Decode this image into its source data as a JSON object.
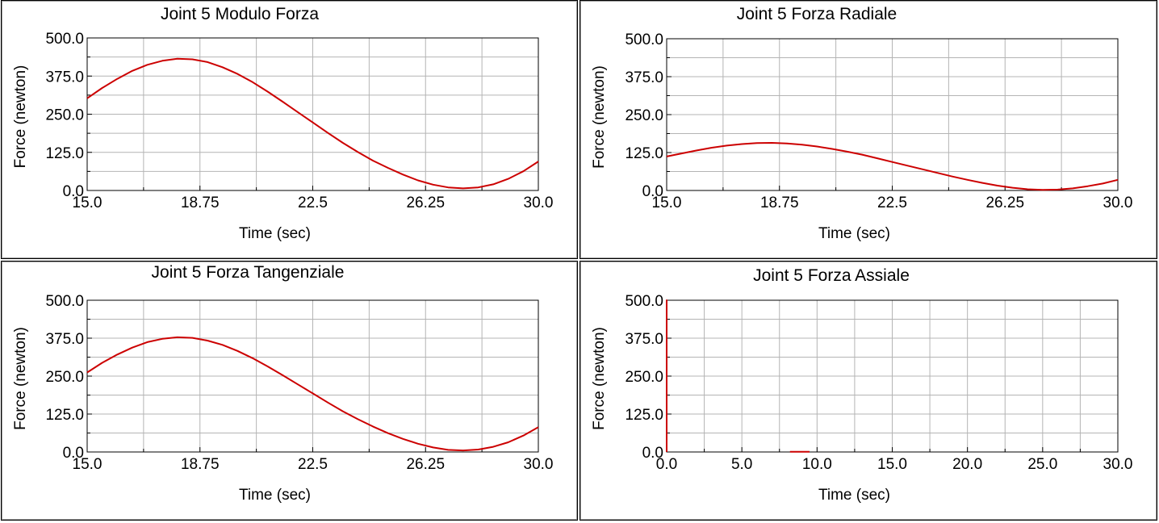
{
  "chart_data": [
    {
      "type": "line",
      "title": "Joint 5 Modulo Forza",
      "xlabel": "Time (sec)",
      "ylabel": "Force (newton)",
      "xlim": [
        15.0,
        30.0
      ],
      "ylim": [
        0.0,
        500.0
      ],
      "xticks": [
        "15.0",
        "18.75",
        "22.5",
        "26.25",
        "30.0"
      ],
      "yticks": [
        "0.0",
        "125.0",
        "250.0",
        "375.0",
        "500.0"
      ],
      "grid": true,
      "series": [
        {
          "color": "#cc0000",
          "x": [
            15.0,
            15.5,
            16.0,
            16.5,
            17.0,
            17.5,
            18.0,
            18.5,
            19.0,
            19.5,
            20.0,
            20.5,
            21.0,
            21.5,
            22.0,
            22.5,
            23.0,
            23.5,
            24.0,
            24.5,
            25.0,
            25.5,
            26.0,
            26.5,
            27.0,
            27.5,
            28.0,
            28.5,
            29.0,
            29.5,
            30.0
          ],
          "y": [
            302,
            336,
            366,
            392,
            412,
            425,
            432,
            430,
            421,
            404,
            382,
            355,
            324,
            291,
            257,
            223,
            189,
            156,
            126,
            98,
            74,
            52,
            33,
            19,
            10,
            7,
            10,
            20,
            38,
            63,
            95
          ]
        }
      ]
    },
    {
      "type": "line",
      "title": "Joint 5 Forza Radiale",
      "xlabel": "Time (sec)",
      "ylabel": "Force (newton)",
      "xlim": [
        15.0,
        30.0
      ],
      "ylim": [
        0.0,
        500.0
      ],
      "xticks": [
        "15.0",
        "18.75",
        "22.5",
        "26.25",
        "30.0"
      ],
      "yticks": [
        "0.0",
        "125.0",
        "250.0",
        "375.0",
        "500.0"
      ],
      "grid": true,
      "series": [
        {
          "color": "#cc0000",
          "x": [
            15.0,
            15.5,
            16.0,
            16.5,
            17.0,
            17.5,
            18.0,
            18.5,
            19.0,
            19.5,
            20.0,
            20.5,
            21.0,
            21.5,
            22.0,
            22.5,
            23.0,
            23.5,
            24.0,
            24.5,
            25.0,
            25.5,
            26.0,
            26.5,
            27.0,
            27.5,
            28.0,
            28.5,
            29.0,
            29.5,
            30.0
          ],
          "y": [
            112,
            122,
            132,
            141,
            148,
            153,
            156,
            157,
            155,
            151,
            145,
            137,
            128,
            118,
            106,
            94,
            82,
            70,
            58,
            46,
            35,
            25,
            16,
            9,
            4,
            2,
            3,
            7,
            14,
            23,
            35
          ]
        }
      ]
    },
    {
      "type": "line",
      "title": "Joint 5 Forza Tangenziale",
      "xlabel": "Time (sec)",
      "ylabel": "Force (newton)",
      "xlim": [
        15.0,
        30.0
      ],
      "ylim": [
        0.0,
        500.0
      ],
      "xticks": [
        "15.0",
        "18.75",
        "22.5",
        "26.25",
        "30.0"
      ],
      "yticks": [
        "0.0",
        "125.0",
        "250.0",
        "375.0",
        "500.0"
      ],
      "grid": true,
      "series": [
        {
          "color": "#cc0000",
          "x": [
            15.0,
            15.5,
            16.0,
            16.5,
            17.0,
            17.5,
            18.0,
            18.5,
            19.0,
            19.5,
            20.0,
            20.5,
            21.0,
            21.5,
            22.0,
            22.5,
            23.0,
            23.5,
            24.0,
            24.5,
            25.0,
            25.5,
            26.0,
            26.5,
            27.0,
            27.5,
            28.0,
            28.5,
            29.0,
            29.5,
            30.0
          ],
          "y": [
            262,
            294,
            321,
            344,
            362,
            373,
            378,
            376,
            367,
            353,
            333,
            309,
            282,
            253,
            223,
            193,
            163,
            134,
            108,
            84,
            62,
            43,
            27,
            15,
            7,
            5,
            8,
            17,
            32,
            54,
            82
          ]
        }
      ]
    },
    {
      "type": "line",
      "title": "Joint 5 Forza Assiale",
      "xlabel": "Time (sec)",
      "ylabel": "Force (newton)",
      "xlim": [
        0.0,
        30.0
      ],
      "ylim": [
        0.0,
        500.0
      ],
      "xticks": [
        "0.0",
        "5.0",
        "10.0",
        "15.0",
        "20.0",
        "25.0",
        "30.0"
      ],
      "yticks": [
        "0.0",
        "125.0",
        "250.0",
        "375.0",
        "500.0"
      ],
      "grid": true,
      "series": [
        {
          "color": "#cc0000",
          "x": [
            0.0,
            0.0,
            0.0
          ],
          "y": [
            0,
            500,
            0
          ]
        },
        {
          "color": "#cc0000",
          "x": [
            8.2,
            9.5
          ],
          "y": [
            0.5,
            0.5
          ]
        }
      ]
    }
  ]
}
